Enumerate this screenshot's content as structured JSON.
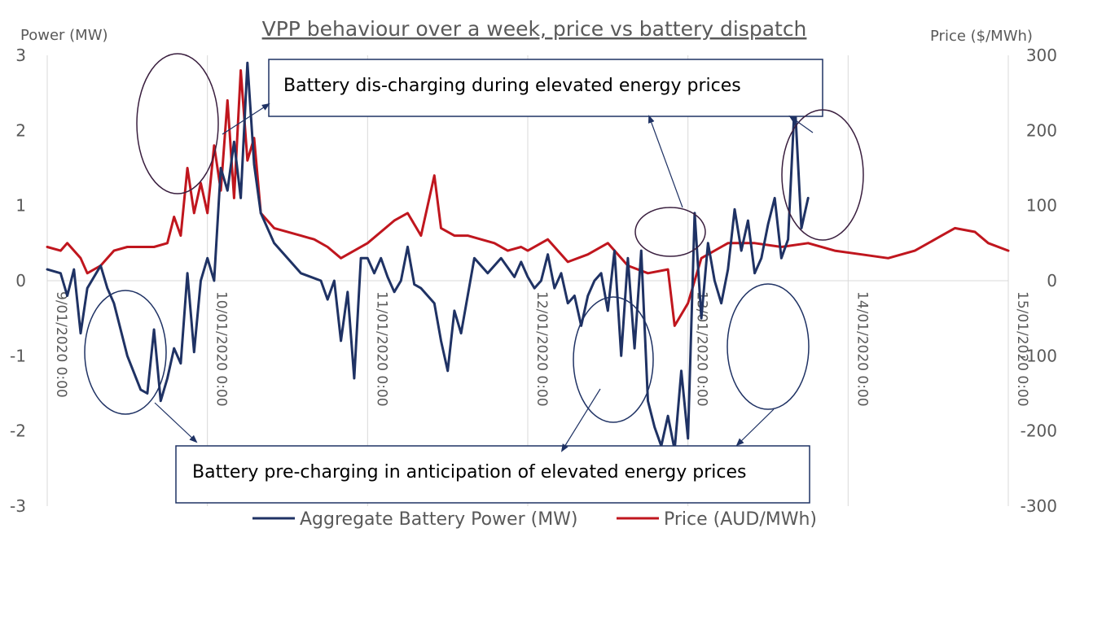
{
  "chart_data": {
    "type": "line",
    "title": "VPP behaviour over a week, price vs battery dispatch",
    "ylabel_left": "Power (MW)",
    "ylabel_right": "Price ($/MWh)",
    "ylim_left": [
      -3,
      3
    ],
    "ylim_right": [
      -300,
      300
    ],
    "yticks_left": [
      "3",
      "2",
      "1",
      "0",
      "-1",
      "-2",
      "-3"
    ],
    "yticks_right": [
      "300",
      "200",
      "100",
      "0",
      "-100",
      "-200",
      "-300"
    ],
    "x_tick_labels": [
      "9/01/2020 0:00",
      "10/01/2020 0:00",
      "11/01/2020 0:00",
      "12/01/2020 0:00",
      "13/01/2020 0:00",
      "14/01/2020 0:00",
      "15/01/2020 0:00"
    ],
    "grid": "vertical",
    "legend_position": "bottom",
    "series": [
      {
        "name": "Aggregate Battery Power (MW)",
        "axis": "left",
        "color": "#1F3264",
        "points": [
          [
            "9/01/2020 0:00",
            0.15
          ],
          [
            "9/01/2020 2:00",
            0.1
          ],
          [
            "9/01/2020 3:00",
            -0.2
          ],
          [
            "9/01/2020 4:00",
            0.15
          ],
          [
            "9/01/2020 5:00",
            -0.7
          ],
          [
            "9/01/2020 6:00",
            -0.1
          ],
          [
            "9/01/2020 8:00",
            0.2
          ],
          [
            "9/01/2020 9:00",
            -0.1
          ],
          [
            "9/01/2020 10:00",
            -0.3
          ],
          [
            "9/01/2020 12:00",
            -1.0
          ],
          [
            "9/01/2020 14:00",
            -1.45
          ],
          [
            "9/01/2020 15:00",
            -1.5
          ],
          [
            "9/01/2020 16:00",
            -0.65
          ],
          [
            "9/01/2020 17:00",
            -1.6
          ],
          [
            "9/01/2020 18:00",
            -1.3
          ],
          [
            "9/01/2020 19:00",
            -0.9
          ],
          [
            "9/01/2020 20:00",
            -1.1
          ],
          [
            "9/01/2020 21:00",
            0.1
          ],
          [
            "9/01/2020 22:00",
            -0.95
          ],
          [
            "9/01/2020 23:00",
            0.0
          ],
          [
            "10/01/2020 0:00",
            0.3
          ],
          [
            "10/01/2020 1:00",
            0.0
          ],
          [
            "10/01/2020 2:00",
            1.5
          ],
          [
            "10/01/2020 3:00",
            1.2
          ],
          [
            "10/01/2020 4:00",
            1.85
          ],
          [
            "10/01/2020 5:00",
            1.1
          ],
          [
            "10/01/2020 6:00",
            2.9
          ],
          [
            "10/01/2020 7:00",
            1.55
          ],
          [
            "10/01/2020 8:00",
            0.9
          ],
          [
            "10/01/2020 10:00",
            0.5
          ],
          [
            "10/01/2020 14:00",
            0.1
          ],
          [
            "10/01/2020 17:00",
            0.0
          ],
          [
            "10/01/2020 18:00",
            -0.25
          ],
          [
            "10/01/2020 19:00",
            0.0
          ],
          [
            "10/01/2020 20:00",
            -0.8
          ],
          [
            "10/01/2020 21:00",
            -0.15
          ],
          [
            "10/01/2020 22:00",
            -1.3
          ],
          [
            "10/01/2020 23:00",
            0.3
          ],
          [
            "11/01/2020 0:00",
            0.3
          ],
          [
            "11/01/2020 1:00",
            0.1
          ],
          [
            "11/01/2020 2:00",
            0.3
          ],
          [
            "11/01/2020 3:00",
            0.05
          ],
          [
            "11/01/2020 4:00",
            -0.15
          ],
          [
            "11/01/2020 5:00",
            0.0
          ],
          [
            "11/01/2020 6:00",
            0.45
          ],
          [
            "11/01/2020 7:00",
            -0.05
          ],
          [
            "11/01/2020 8:00",
            -0.1
          ],
          [
            "11/01/2020 10:00",
            -0.3
          ],
          [
            "11/01/2020 11:00",
            -0.8
          ],
          [
            "11/01/2020 12:00",
            -1.2
          ],
          [
            "11/01/2020 13:00",
            -0.4
          ],
          [
            "11/01/2020 14:00",
            -0.7
          ],
          [
            "11/01/2020 16:00",
            0.3
          ],
          [
            "11/01/2020 18:00",
            0.1
          ],
          [
            "11/01/2020 20:00",
            0.3
          ],
          [
            "11/01/2020 22:00",
            0.05
          ],
          [
            "11/01/2020 23:00",
            0.25
          ],
          [
            "12/01/2020 0:00",
            0.05
          ],
          [
            "12/01/2020 1:00",
            -0.1
          ],
          [
            "12/01/2020 2:00",
            0.0
          ],
          [
            "12/01/2020 3:00",
            0.35
          ],
          [
            "12/01/2020 4:00",
            -0.1
          ],
          [
            "12/01/2020 5:00",
            0.1
          ],
          [
            "12/01/2020 6:00",
            -0.3
          ],
          [
            "12/01/2020 7:00",
            -0.2
          ],
          [
            "12/01/2020 8:00",
            -0.6
          ],
          [
            "12/01/2020 9:00",
            -0.2
          ],
          [
            "12/01/2020 10:00",
            0.0
          ],
          [
            "12/01/2020 11:00",
            0.1
          ],
          [
            "12/01/2020 12:00",
            -0.4
          ],
          [
            "12/01/2020 13:00",
            0.4
          ],
          [
            "12/01/2020 14:00",
            -1.0
          ],
          [
            "12/01/2020 15:00",
            0.3
          ],
          [
            "12/01/2020 16:00",
            -0.9
          ],
          [
            "12/01/2020 17:00",
            0.4
          ],
          [
            "12/01/2020 18:00",
            -1.6
          ],
          [
            "12/01/2020 19:00",
            -1.95
          ],
          [
            "12/01/2020 20:00",
            -2.2
          ],
          [
            "12/01/2020 21:00",
            -1.8
          ],
          [
            "12/01/2020 22:00",
            -2.25
          ],
          [
            "12/01/2020 23:00",
            -1.2
          ],
          [
            "13/01/2020 0:00",
            -2.1
          ],
          [
            "13/01/2020 1:00",
            0.9
          ],
          [
            "13/01/2020 2:00",
            -0.5
          ],
          [
            "13/01/2020 3:00",
            0.5
          ],
          [
            "13/01/2020 4:00",
            0.0
          ],
          [
            "13/01/2020 5:00",
            -0.3
          ],
          [
            "13/01/2020 6:00",
            0.15
          ],
          [
            "13/01/2020 7:00",
            0.95
          ],
          [
            "13/01/2020 8:00",
            0.4
          ],
          [
            "13/01/2020 9:00",
            0.8
          ],
          [
            "13/01/2020 10:00",
            0.1
          ],
          [
            "13/01/2020 11:00",
            0.3
          ],
          [
            "13/01/2020 12:00",
            0.75
          ],
          [
            "13/01/2020 13:00",
            1.1
          ],
          [
            "13/01/2020 14:00",
            0.3
          ],
          [
            "13/01/2020 15:00",
            0.55
          ],
          [
            "13/01/2020 16:00",
            2.4
          ],
          [
            "13/01/2020 17:00",
            0.7
          ],
          [
            "13/01/2020 18:00",
            1.1
          ]
        ]
      },
      {
        "name": "Price (AUD/MWh)",
        "axis": "right",
        "color": "#C0161E",
        "points": [
          [
            "9/01/2020 0:00",
            45
          ],
          [
            "9/01/2020 2:00",
            40
          ],
          [
            "9/01/2020 3:00",
            50
          ],
          [
            "9/01/2020 5:00",
            30
          ],
          [
            "9/01/2020 6:00",
            10
          ],
          [
            "9/01/2020 8:00",
            20
          ],
          [
            "9/01/2020 10:00",
            40
          ],
          [
            "9/01/2020 12:00",
            45
          ],
          [
            "9/01/2020 16:00",
            45
          ],
          [
            "9/01/2020 18:00",
            50
          ],
          [
            "9/01/2020 19:00",
            85
          ],
          [
            "9/01/2020 20:00",
            60
          ],
          [
            "9/01/2020 21:00",
            150
          ],
          [
            "9/01/2020 22:00",
            90
          ],
          [
            "9/01/2020 23:00",
            130
          ],
          [
            "10/01/2020 0:00",
            90
          ],
          [
            "10/01/2020 1:00",
            180
          ],
          [
            "10/01/2020 2:00",
            120
          ],
          [
            "10/01/2020 3:00",
            240
          ],
          [
            "10/01/2020 4:00",
            110
          ],
          [
            "10/01/2020 5:00",
            280
          ],
          [
            "10/01/2020 6:00",
            160
          ],
          [
            "10/01/2020 7:00",
            190
          ],
          [
            "10/01/2020 8:00",
            90
          ],
          [
            "10/01/2020 10:00",
            70
          ],
          [
            "10/01/2020 14:00",
            60
          ],
          [
            "10/01/2020 16:00",
            55
          ],
          [
            "10/01/2020 18:00",
            45
          ],
          [
            "10/01/2020 20:00",
            30
          ],
          [
            "11/01/2020 0:00",
            50
          ],
          [
            "11/01/2020 4:00",
            80
          ],
          [
            "11/01/2020 6:00",
            90
          ],
          [
            "11/01/2020 8:00",
            60
          ],
          [
            "11/01/2020 10:00",
            140
          ],
          [
            "11/01/2020 11:00",
            70
          ],
          [
            "11/01/2020 13:00",
            60
          ],
          [
            "11/01/2020 15:00",
            60
          ],
          [
            "11/01/2020 17:00",
            55
          ],
          [
            "11/01/2020 19:00",
            50
          ],
          [
            "11/01/2020 21:00",
            40
          ],
          [
            "11/01/2020 23:00",
            45
          ],
          [
            "12/01/2020 0:00",
            40
          ],
          [
            "12/01/2020 3:00",
            55
          ],
          [
            "12/01/2020 6:00",
            25
          ],
          [
            "12/01/2020 9:00",
            35
          ],
          [
            "12/01/2020 12:00",
            50
          ],
          [
            "12/01/2020 15:00",
            20
          ],
          [
            "12/01/2020 18:00",
            10
          ],
          [
            "12/01/2020 21:00",
            15
          ],
          [
            "12/01/2020 22:00",
            -60
          ],
          [
            "13/01/2020 0:00",
            -30
          ],
          [
            "13/01/2020 2:00",
            30
          ],
          [
            "13/01/2020 6:00",
            50
          ],
          [
            "13/01/2020 10:00",
            50
          ],
          [
            "13/01/2020 14:00",
            45
          ],
          [
            "13/01/2020 18:00",
            50
          ],
          [
            "13/01/2020 22:00",
            40
          ],
          [
            "14/01/2020 2:00",
            35
          ],
          [
            "14/01/2020 6:00",
            30
          ],
          [
            "14/01/2020 10:00",
            40
          ],
          [
            "14/01/2020 14:00",
            60
          ],
          [
            "14/01/2020 16:00",
            70
          ],
          [
            "14/01/2020 19:00",
            65
          ],
          [
            "14/01/2020 21:00",
            50
          ],
          [
            "15/01/2020 0:00",
            40
          ]
        ]
      }
    ],
    "annotations": [
      "Battery dis-charging during elevated energy prices",
      "Battery pre-charging in anticipation of elevated energy prices"
    ]
  }
}
